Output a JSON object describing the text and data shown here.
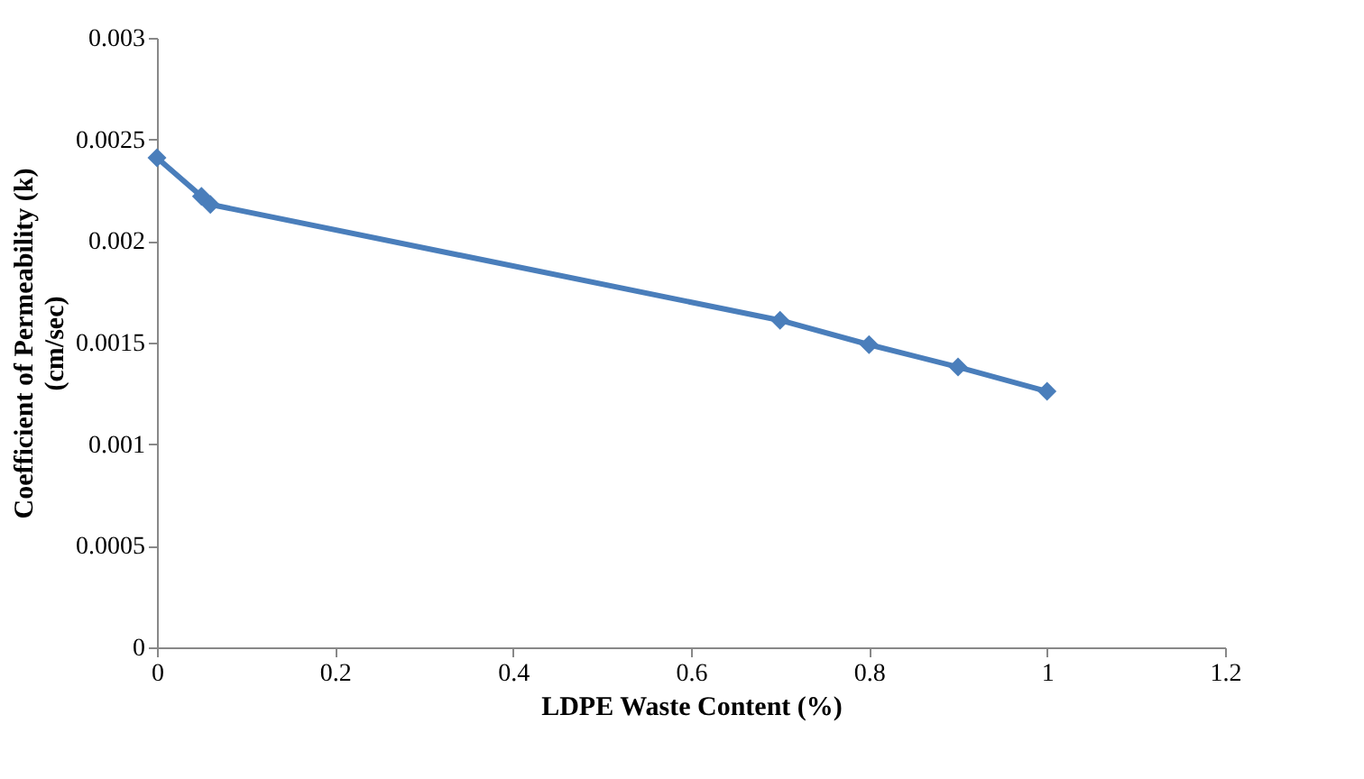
{
  "chart_data": {
    "type": "line",
    "xlabel": "LDPE Waste Content (%)",
    "ylabel": "Coefficient of Permeability (k)\n(cm/sec)",
    "x": [
      0,
      0.05,
      0.06,
      0.7,
      0.8,
      0.9,
      1.0
    ],
    "series": [
      {
        "color": "#4a7ebb",
        "values": [
          0.00241,
          0.00222,
          0.00218,
          0.00161,
          0.00149,
          0.00138,
          0.00126
        ]
      }
    ],
    "xlim": [
      0,
      1.2
    ],
    "xticks": [
      0,
      0.2,
      0.4,
      0.6,
      0.8,
      1,
      1.2
    ],
    "ylim": [
      0,
      0.003
    ],
    "yticks": [
      0,
      0.0005,
      0.001,
      0.0015,
      0.002,
      0.0025,
      0.003
    ],
    "grid": false,
    "marker": "diamond",
    "line_style": "solid"
  }
}
